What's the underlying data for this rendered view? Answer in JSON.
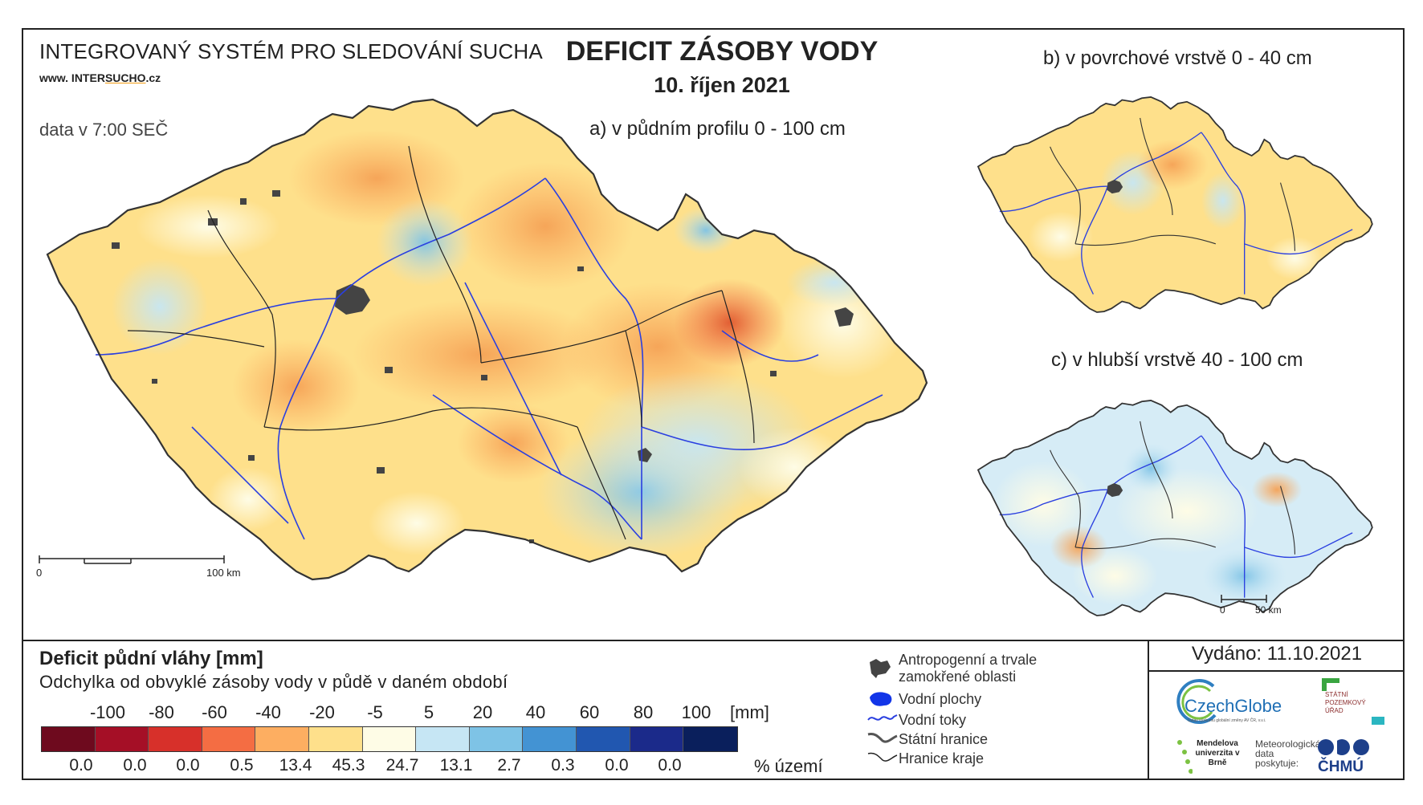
{
  "header": {
    "system_title": "INTEGROVANÝ SYSTÉM PRO SLEDOVÁNÍ SUCHA",
    "website_prefix": "www. INTER",
    "website_main": "SUCHO",
    "website_suffix": ".cz",
    "data_time": "data v 7:00 SEČ",
    "main_title": "DEFICIT ZÁSOBY VODY",
    "date": "10. říjen 2021"
  },
  "maps": {
    "a_label": "a) v půdním profilu 0 - 100 cm",
    "b_label": "b) v povrchové vrstvě 0 - 40 cm",
    "c_label": "c) v hlubší vrstvě 40 - 100 cm",
    "scale_main": {
      "zero": "0",
      "end": "100 km"
    },
    "scale_small": {
      "zero": "0",
      "end": "50 km"
    }
  },
  "legend": {
    "title": "Deficit půdní vláhy  [mm]",
    "subtitle": "Odchylka od obvyklé zásoby vody v půdě v daném období",
    "scale_values": [
      "-100",
      "-80",
      "-60",
      "-40",
      "-20",
      "-5",
      "5",
      "20",
      "40",
      "60",
      "80",
      "100"
    ],
    "unit": "[mm]",
    "colors": [
      "#6e0a1e",
      "#a50f26",
      "#d7302a",
      "#f46d43",
      "#fdae61",
      "#fee08b",
      "#fefce6",
      "#c6e6f4",
      "#7ec3e6",
      "#4393d3",
      "#2157b0",
      "#1b2a8a",
      "#0a1f5c"
    ],
    "percents": [
      "0.0",
      "0.0",
      "0.0",
      "0.5",
      "13.4",
      "45.3",
      "24.7",
      "13.1",
      "2.7",
      "0.3",
      "0.0",
      "0.0"
    ],
    "percent_unit": "% území"
  },
  "symbols": {
    "urban": "Antropogenní a trvale zamokřené oblasti",
    "water_bodies": "Vodní plochy",
    "rivers": "Vodní toky",
    "state_border": "Státní hranice",
    "region_border": "Hranice kraje"
  },
  "footer": {
    "issued": "Vydáno: 11.10.2021",
    "czechglobe": "CzechGlobe",
    "czechglobe_sub": "Ústav výzkumu globální změny AV ČR, v.v.i.",
    "spu": "STÁTNÍ POZEMKOVÝ ÚŘAD",
    "mendelu": "Mendelova univerzita v Brně",
    "meteo": "Meteorologická data poskytuje:",
    "chmu": "ČHMÚ"
  }
}
